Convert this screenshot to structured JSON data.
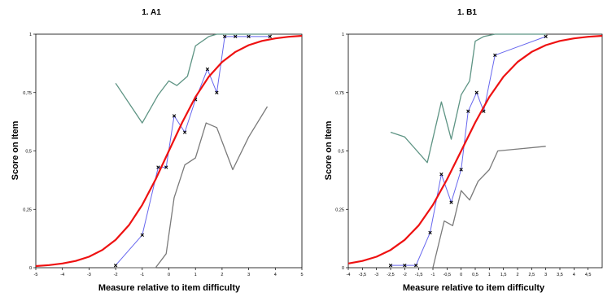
{
  "chart_data": [
    {
      "type": "line",
      "title": "1. A1",
      "xlabel": "Measure relative to item difficulty",
      "ylabel": "Score on Item",
      "xlim": [
        -5,
        5
      ],
      "ylim": [
        0,
        1
      ],
      "grid": false,
      "x_ticks": [
        "-5",
        "-4",
        "-3",
        "-2",
        "-1",
        "0",
        "1",
        "2",
        "3",
        "4",
        "5"
      ],
      "y_ticks": [
        "0",
        "0,25",
        "0,5",
        "0,75",
        "1"
      ],
      "colors": {
        "expected": "#ee1111",
        "observed": "#6666ee",
        "upper": "#5e9484",
        "lower": "#7a7a7a"
      },
      "series": [
        {
          "role": "expected",
          "x": [
            -5.0,
            -4.5,
            -4.0,
            -3.5,
            -3.0,
            -2.5,
            -2.0,
            -1.5,
            -1.0,
            -0.5,
            0.0,
            0.5,
            1.0,
            1.5,
            2.0,
            2.5,
            3.0,
            3.5,
            4.0,
            4.5,
            5.0
          ],
          "y": [
            0.007,
            0.011,
            0.018,
            0.029,
            0.047,
            0.076,
            0.119,
            0.182,
            0.269,
            0.378,
            0.5,
            0.622,
            0.731,
            0.818,
            0.881,
            0.924,
            0.953,
            0.971,
            0.982,
            0.989,
            0.993
          ]
        },
        {
          "role": "observed",
          "x": [
            -2.0,
            -1.0,
            -0.4,
            -0.1,
            0.2,
            0.6,
            1.0,
            1.45,
            1.8,
            2.1,
            2.5,
            3.0,
            3.8
          ],
          "y": [
            0.01,
            0.14,
            0.43,
            0.43,
            0.65,
            0.58,
            0.72,
            0.85,
            0.75,
            0.99,
            0.99,
            0.99,
            0.99
          ]
        },
        {
          "role": "upper",
          "x": [
            -2.0,
            -1.0,
            -0.4,
            0.0,
            0.3,
            0.7,
            1.0,
            1.5,
            1.8,
            2.1,
            2.5,
            3.0,
            3.8
          ],
          "y": [
            0.79,
            0.62,
            0.74,
            0.8,
            0.78,
            0.82,
            0.95,
            0.99,
            1.0,
            1.0,
            1.0,
            1.0,
            1.0
          ]
        },
        {
          "role": "lower",
          "x": [
            -2.0,
            -1.0,
            -0.5,
            -0.1,
            0.2,
            0.6,
            1.0,
            1.4,
            1.8,
            2.4,
            3.0,
            3.7
          ],
          "y": [
            0.0,
            0.0,
            0.0,
            0.06,
            0.3,
            0.44,
            0.47,
            0.62,
            0.6,
            0.42,
            0.56,
            0.69
          ]
        }
      ]
    },
    {
      "type": "line",
      "title": "1. B1",
      "xlabel": "Measure relative to item difficulty",
      "ylabel": "Score on Item",
      "xlim": [
        -4,
        5
      ],
      "ylim": [
        0,
        1
      ],
      "grid": false,
      "x_ticks": [
        "-4",
        "-3,5",
        "-3",
        "-2,5",
        "-2",
        "-1,5",
        "-1",
        "-0,5",
        "0",
        "0,5",
        "1",
        "1,5",
        "2",
        "2,5",
        "3",
        "3,5",
        "4",
        "4,5"
      ],
      "y_ticks": [
        "0",
        "0,25",
        "0,5",
        "0,75",
        "1"
      ],
      "colors": {
        "expected": "#ee1111",
        "observed": "#6666ee",
        "upper": "#5e9484",
        "lower": "#7a7a7a"
      },
      "series": [
        {
          "role": "expected",
          "x": [
            -4.0,
            -3.5,
            -3.0,
            -2.5,
            -2.0,
            -1.5,
            -1.0,
            -0.5,
            0.0,
            0.5,
            1.0,
            1.5,
            2.0,
            2.5,
            3.0,
            3.5,
            4.0,
            4.5,
            5.0
          ],
          "y": [
            0.018,
            0.029,
            0.047,
            0.076,
            0.119,
            0.182,
            0.269,
            0.378,
            0.5,
            0.622,
            0.731,
            0.818,
            0.881,
            0.924,
            0.953,
            0.971,
            0.982,
            0.989,
            0.993
          ]
        },
        {
          "role": "observed",
          "x": [
            -2.5,
            -2.0,
            -1.6,
            -1.1,
            -0.7,
            -0.35,
            0.0,
            0.25,
            0.55,
            0.8,
            1.2,
            3.0
          ],
          "y": [
            0.01,
            0.01,
            0.01,
            0.15,
            0.4,
            0.28,
            0.42,
            0.67,
            0.75,
            0.67,
            0.91,
            0.99
          ]
        },
        {
          "role": "upper",
          "x": [
            -2.5,
            -2.0,
            -1.2,
            -0.7,
            -0.35,
            0.0,
            0.3,
            0.5,
            0.8,
            1.2,
            1.8,
            3.0
          ],
          "y": [
            0.58,
            0.56,
            0.45,
            0.71,
            0.55,
            0.74,
            0.8,
            0.97,
            0.99,
            1.0,
            1.0,
            1.0
          ]
        },
        {
          "role": "lower",
          "x": [
            -2.5,
            -1.6,
            -1.0,
            -0.6,
            -0.3,
            0.0,
            0.3,
            0.6,
            1.0,
            1.3,
            3.0
          ],
          "y": [
            0.0,
            0.0,
            0.0,
            0.2,
            0.18,
            0.33,
            0.29,
            0.37,
            0.42,
            0.5,
            0.52
          ]
        }
      ]
    }
  ]
}
